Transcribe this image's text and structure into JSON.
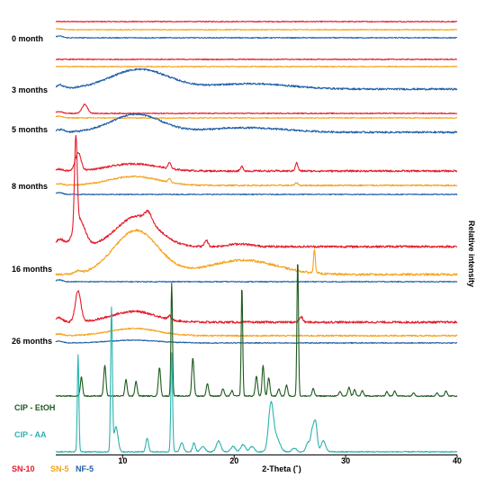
{
  "chart_data": {
    "type": "line",
    "xlabel": "2-Theta (˚)",
    "ylabel": "Relative intensity",
    "xlim": [
      4,
      40
    ],
    "x_ticks": [
      10,
      20,
      30,
      40
    ],
    "grid": false,
    "colors": {
      "SN-10": "#e41b2a",
      "SN-5": "#f5a21b",
      "NF-5": "#1f5fa8",
      "CIP - EtOH": "#1e5a1e",
      "CIP - AA": "#2ab3ad"
    },
    "groups": [
      {
        "label": "0 month",
        "series": [
          {
            "name": "SN-10",
            "offset": 24,
            "base": 0.5,
            "peaks": []
          },
          {
            "name": "SN-5",
            "offset": 33,
            "base": 0.5,
            "peaks": [
              [
                4.3,
                1.0,
                0.3
              ]
            ]
          },
          {
            "name": "NF-5",
            "offset": 42,
            "base": 0.5,
            "peaks": [
              [
                4.3,
                2.0,
                0.3
              ]
            ]
          }
        ]
      },
      {
        "label": "3 months",
        "series": [
          {
            "name": "SN-10",
            "offset": 66,
            "base": 0.5,
            "peaks": []
          },
          {
            "name": "SN-5",
            "offset": 74,
            "base": 0.5,
            "peaks": []
          },
          {
            "name": "NF-5",
            "offset": 99,
            "base": 1.0,
            "peaks": [
              [
                11.5,
                22,
                2.6
              ],
              [
                21.5,
                6,
                3.5
              ],
              [
                4.4,
                4,
                0.35
              ]
            ]
          }
        ]
      },
      {
        "label": "5 months",
        "series": [
          {
            "name": "SN-10",
            "offset": 126,
            "base": 0.5,
            "peaks": [
              [
                6.6,
                10,
                0.25
              ],
              [
                4.3,
                2,
                0.3
              ]
            ]
          },
          {
            "name": "SN-5",
            "offset": 131,
            "base": 0.5,
            "peaks": [
              [
                4.3,
                2,
                0.3
              ]
            ]
          },
          {
            "name": "NF-5",
            "offset": 147,
            "base": 1.0,
            "peaks": [
              [
                11.2,
                20,
                2.2
              ],
              [
                21.0,
                5,
                3.5
              ],
              [
                4.4,
                3,
                0.35
              ]
            ]
          }
        ]
      },
      {
        "label": "8 months",
        "series": [
          {
            "name": "SN-10",
            "offset": 190,
            "base": 1.0,
            "peaks": [
              [
                6.0,
                20,
                0.25
              ],
              [
                11.0,
                8,
                2.2
              ],
              [
                14.2,
                7,
                0.12
              ],
              [
                20.7,
                5,
                0.12
              ],
              [
                25.6,
                9,
                0.12
              ],
              [
                4.3,
                2,
                0.3
              ]
            ]
          },
          {
            "name": "SN-5",
            "offset": 206,
            "base": 0.8,
            "peaks": [
              [
                11.0,
                10,
                2.2
              ],
              [
                14.2,
                4,
                0.12
              ],
              [
                25.6,
                3,
                0.12
              ],
              [
                4.3,
                2,
                0.3
              ]
            ]
          },
          {
            "name": "NF-5",
            "offset": 216,
            "base": 0.5,
            "peaks": [
              [
                4.3,
                2,
                0.3
              ]
            ]
          }
        ]
      },
      {
        "label": "16 months",
        "series": [
          {
            "name": "SN-10",
            "offset": 274,
            "base": 1.2,
            "peaks": [
              [
                5.8,
                99,
                0.12
              ],
              [
                6.1,
                30,
                0.5
              ],
              [
                11.3,
                34,
                1.8
              ],
              [
                12.3,
                10,
                0.3
              ],
              [
                17.5,
                7,
                0.15
              ],
              [
                20.5,
                3,
                1.0
              ],
              [
                4.4,
                8,
                0.4
              ]
            ]
          },
          {
            "name": "SN-5",
            "offset": 305,
            "base": 1.2,
            "peaks": [
              [
                11.2,
                49,
                2.0
              ],
              [
                20.8,
                16,
                3.0
              ],
              [
                27.2,
                27,
                0.08
              ],
              [
                6.0,
                3,
                0.2
              ]
            ]
          },
          {
            "name": "NF-5",
            "offset": 313,
            "base": 0.5,
            "peaks": [
              [
                4.3,
                2,
                0.3
              ]
            ]
          }
        ]
      },
      {
        "label": "26 months",
        "series": [
          {
            "name": "SN-10",
            "offset": 358,
            "base": 1.2,
            "peaks": [
              [
                6.0,
                34,
                0.25
              ],
              [
                11.0,
                12,
                2.0
              ],
              [
                14.2,
                4,
                0.12
              ],
              [
                26.0,
                6,
                0.15
              ],
              [
                4.3,
                5,
                0.3
              ]
            ]
          },
          {
            "name": "SN-5",
            "offset": 373,
            "base": 0.8,
            "peaks": [
              [
                11.0,
                8,
                2.2
              ],
              [
                4.3,
                2,
                0.3
              ]
            ]
          },
          {
            "name": "NF-5",
            "offset": 381,
            "base": 0.5,
            "peaks": [
              [
                11.0,
                3,
                2.2
              ],
              [
                4.3,
                2,
                0.3
              ]
            ]
          }
        ]
      },
      {
        "label": "CIP - EtOH",
        "series": [
          {
            "name": "CIP - EtOH",
            "offset": 440,
            "base": 0.6,
            "peaks": [
              [
                6.3,
                21,
                0.1
              ],
              [
                8.4,
                34,
                0.1
              ],
              [
                10.3,
                18,
                0.1
              ],
              [
                11.2,
                16,
                0.1
              ],
              [
                13.3,
                32,
                0.1
              ],
              [
                14.4,
                126,
                0.07
              ],
              [
                16.3,
                42,
                0.1
              ],
              [
                17.6,
                14,
                0.1
              ],
              [
                19.0,
                8,
                0.1
              ],
              [
                19.8,
                6,
                0.1
              ],
              [
                20.7,
                122,
                0.07
              ],
              [
                22.0,
                22,
                0.1
              ],
              [
                22.6,
                34,
                0.09
              ],
              [
                23.1,
                20,
                0.1
              ],
              [
                24.0,
                8,
                0.1
              ],
              [
                24.7,
                12,
                0.1
              ],
              [
                25.7,
                152,
                0.07
              ],
              [
                27.1,
                8,
                0.1
              ],
              [
                29.5,
                5,
                0.1
              ],
              [
                30.3,
                10,
                0.1
              ],
              [
                30.8,
                7,
                0.1
              ],
              [
                31.5,
                6,
                0.1
              ],
              [
                33.7,
                5,
                0.1
              ],
              [
                34.4,
                6,
                0.1
              ],
              [
                36.1,
                4,
                0.1
              ],
              [
                38.2,
                3,
                0.1
              ],
              [
                39.0,
                6,
                0.1
              ]
            ]
          }
        ]
      },
      {
        "label": "CIP - AA",
        "series": [
          {
            "name": "CIP - AA",
            "offset": 502,
            "base": 0.6,
            "peaks": [
              [
                6.0,
                108,
                0.07
              ],
              [
                9.0,
                158,
                0.08
              ],
              [
                9.4,
                28,
                0.18
              ],
              [
                12.2,
                15,
                0.12
              ],
              [
                14.4,
                110,
                0.08
              ],
              [
                15.3,
                10,
                0.15
              ],
              [
                16.4,
                10,
                0.12
              ],
              [
                17.2,
                6,
                0.2
              ],
              [
                18.6,
                12,
                0.2
              ],
              [
                19.9,
                6,
                0.2
              ],
              [
                20.8,
                8,
                0.2
              ],
              [
                21.6,
                6,
                0.2
              ],
              [
                23.3,
                52,
                0.22
              ],
              [
                23.8,
                15,
                0.3
              ],
              [
                25.4,
                4,
                0.2
              ],
              [
                26.6,
                10,
                0.15
              ],
              [
                27.0,
                22,
                0.15
              ],
              [
                27.3,
                32,
                0.15
              ],
              [
                28.0,
                12,
                0.2
              ]
            ]
          }
        ]
      }
    ],
    "legend": [
      "SN-10",
      "SN-5",
      "NF-5"
    ]
  }
}
